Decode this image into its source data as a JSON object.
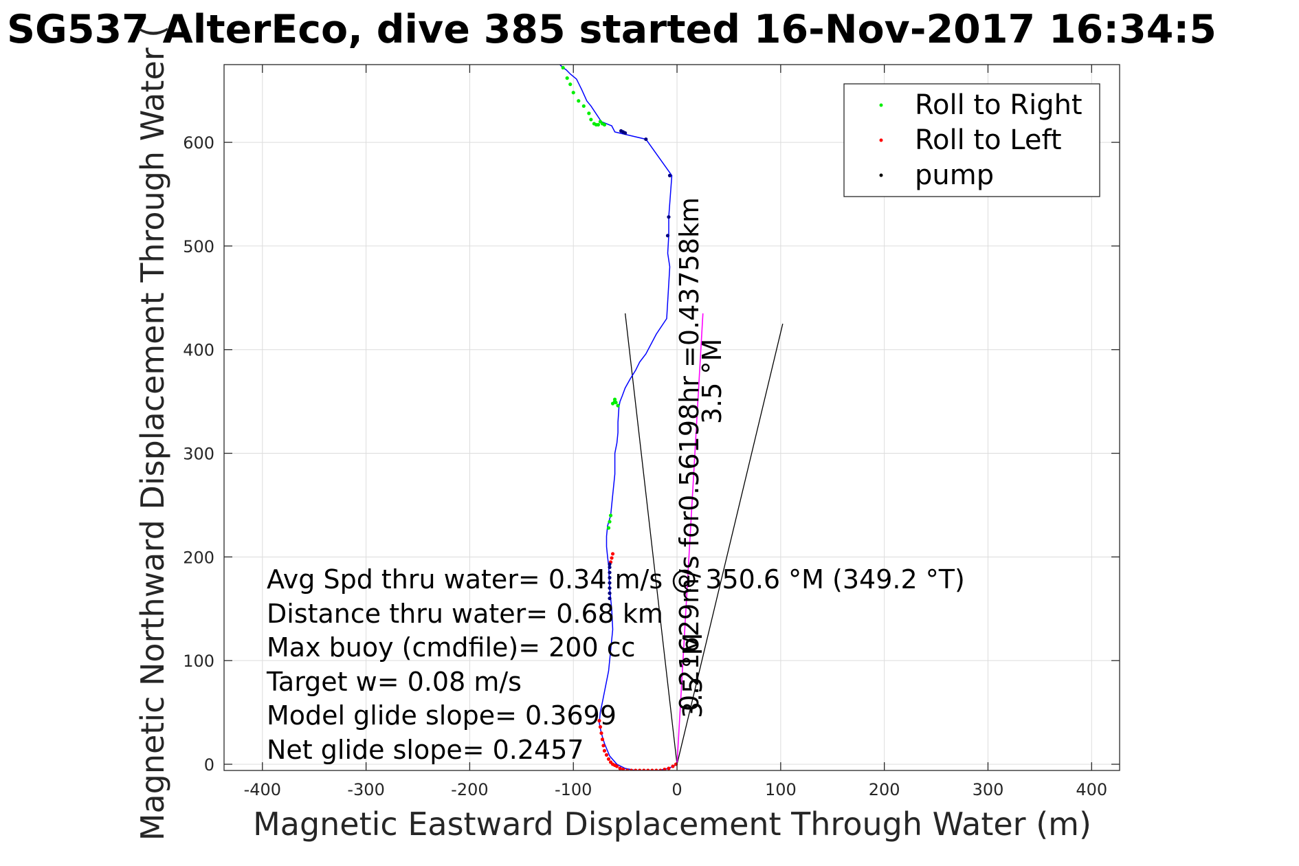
{
  "chart_data": {
    "type": "scatter",
    "title": "SG537 AlterEco, dive 385 started 16-Nov-2017 16:34:5",
    "xlabel": "Magnetic Eastward Displacement Through Water (m)",
    "ylabel": "Magnetic Northward Displacement Through Water (",
    "xlim": [
      -437,
      427
    ],
    "ylim": [
      -6,
      675
    ],
    "xticks": [
      -400,
      -300,
      -200,
      -100,
      0,
      100,
      200,
      300,
      400
    ],
    "xtick_labels": [
      "-400",
      "-300",
      "-200",
      "-100",
      "0",
      "100",
      "200",
      "300",
      "400"
    ],
    "yticks": [
      0,
      100,
      200,
      300,
      400,
      500,
      600
    ],
    "ytick_labels": [
      "0",
      "100",
      "200",
      "300",
      "400",
      "500",
      "600"
    ],
    "grid": true,
    "legend_position": "top-right",
    "colors": {
      "track": "#0000ff",
      "current": "#ff00ff",
      "cone": "#000000",
      "roll_right": "#00ee00",
      "roll_left": "#ff0000",
      "pump": "#000080"
    },
    "track": {
      "x": [
        0,
        -8,
        -18,
        -30,
        -40,
        -50,
        -58,
        -65,
        -70,
        -73,
        -75,
        -74,
        -72,
        -70,
        -68,
        -66,
        -65,
        -64,
        -62,
        -63,
        -65,
        -66,
        -67,
        -68,
        -68,
        -67,
        -64,
        -62,
        -60,
        -60,
        -58,
        -57,
        -57,
        -56,
        -55,
        -53,
        -50,
        -45,
        -40,
        -36,
        -30,
        -20,
        -10,
        -7,
        -9,
        -8,
        -8,
        -5,
        -30,
        -60,
        -63,
        -73,
        -83,
        -87,
        -92,
        -97,
        -103,
        -107,
        -110,
        -113
      ],
      "y": [
        0,
        -4,
        -6,
        -6,
        -6,
        -4,
        0,
        8,
        20,
        30,
        40,
        50,
        60,
        70,
        80,
        90,
        100,
        110,
        130,
        150,
        170,
        192,
        200,
        210,
        220,
        230,
        240,
        260,
        280,
        300,
        310,
        320,
        330,
        345,
        350,
        355,
        363,
        372,
        380,
        388,
        396,
        415,
        430,
        480,
        493,
        510,
        528,
        568,
        603,
        610,
        616,
        620,
        635,
        640,
        651,
        661,
        666,
        670,
        672,
        675
      ]
    },
    "current_line": {
      "x": [
        0,
        25
      ],
      "y": [
        0,
        435
      ]
    },
    "cone_lines": [
      {
        "x": [
          0,
          -50
        ],
        "y": [
          0,
          435
        ]
      },
      {
        "x": [
          0,
          102
        ],
        "y": [
          0,
          425
        ]
      }
    ],
    "series": [
      {
        "name": "Roll to Right",
        "marker": "dot",
        "x": [
          -66,
          -65,
          -64,
          -62,
          -60,
          -60,
          -59,
          -57,
          -74,
          -72,
          -70,
          -100,
          -95,
          -90,
          -85,
          -83,
          -80,
          -78,
          -76,
          -70,
          -103,
          -106,
          -110
        ],
        "y": [
          228,
          234,
          240,
          348,
          350,
          352,
          349,
          346,
          620,
          618,
          617,
          648,
          640,
          635,
          628,
          622,
          618,
          617,
          617,
          617,
          656,
          662,
          672
        ]
      },
      {
        "name": "Roll to Left",
        "marker": "dot",
        "x": [
          -75,
          -74,
          -73,
          -72,
          -71,
          -70,
          -68,
          -66,
          -64,
          -62,
          -60,
          -58,
          -55,
          -52,
          -48,
          -44,
          -40,
          -36,
          -32,
          -28,
          -24,
          -20,
          -16,
          -12,
          -8,
          -4,
          -1,
          -64,
          -63,
          -62
        ],
        "y": [
          42,
          36,
          30,
          24,
          18,
          13,
          9,
          5,
          2,
          0,
          -1,
          -2,
          -4,
          -5,
          -6,
          -6,
          -6,
          -6,
          -6,
          -6,
          -6,
          -6,
          -6,
          -5,
          -4,
          -2,
          0,
          195,
          199,
          203
        ]
      },
      {
        "name": "pump",
        "marker": "dot",
        "x": [
          -65,
          -65,
          -65,
          -65,
          -65,
          -65,
          -65,
          -65,
          -7,
          -8,
          -9,
          -30,
          -50,
          -52,
          -54
        ],
        "y": [
          160,
          165,
          170,
          175,
          180,
          185,
          190,
          193,
          568,
          528,
          510,
          603,
          609,
          610,
          611
        ]
      }
    ],
    "annotations": {
      "speed_text": "0.21629m/s for0.56198hr =0.43758km",
      "mag_text_1": "3.5 °M",
      "mag_text_2": "3.5 °M",
      "stats_lines": [
        "Avg Spd thru water=  0.34 m/s @ 350.6 °M (349.2 °T)",
        "Distance thru water=  0.68 km",
        "Max buoy (cmdfile)= 200 cc",
        "Target w= 0.08 m/s",
        "Model glide slope= 0.3699",
        "Net glide slope= 0.2457"
      ]
    }
  }
}
